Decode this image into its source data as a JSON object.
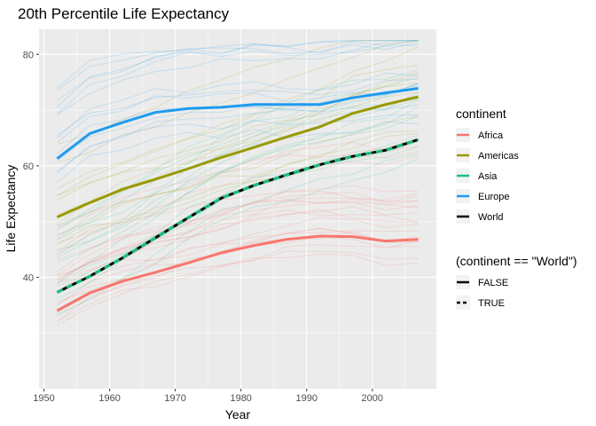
{
  "chart_data": {
    "type": "line",
    "title": "20th Percentile Life Expectancy",
    "xlabel": "Year",
    "ylabel": "Life Expectancy",
    "xlim": [
      1949.25,
      2009.75
    ],
    "ylim": [
      20.0,
      84.5
    ],
    "x_ticks": [
      1950,
      1960,
      1970,
      1980,
      1990,
      2000
    ],
    "y_ticks": [
      40,
      60,
      80
    ],
    "grid": true,
    "legend_position": "right",
    "x": [
      1952,
      1957,
      1962,
      1967,
      1972,
      1977,
      1982,
      1987,
      1992,
      1997,
      2002,
      2007
    ],
    "series": [
      {
        "name": "Africa",
        "color": "#F8766D",
        "values": [
          34.0,
          37.2,
          39.3,
          40.9,
          42.6,
          44.4,
          45.7,
          46.8,
          47.4,
          47.3,
          46.5,
          46.8
        ]
      },
      {
        "name": "Americas",
        "color": "#999900",
        "values": [
          50.8,
          53.4,
          55.8,
          57.6,
          59.5,
          61.5,
          63.3,
          65.2,
          67.0,
          69.4,
          71.0,
          72.4
        ]
      },
      {
        "name": "Europe",
        "color": "#1E9BF0",
        "values": [
          61.3,
          65.8,
          67.8,
          69.6,
          70.3,
          70.5,
          71.0,
          71.0,
          71.0,
          72.2,
          73.1,
          73.9
        ]
      },
      {
        "name": "World",
        "color": "#000000",
        "dashed_overlay": true,
        "values": [
          37.3,
          40.2,
          43.5,
          47.1,
          50.7,
          54.2,
          56.5,
          58.4,
          60.2,
          61.7,
          62.8,
          64.7
        ]
      }
    ],
    "background_lines": {
      "Africa": "#F8766D",
      "Americas": "#999900",
      "Asia": "#18C07F",
      "Europe": "#1E9BF0"
    },
    "legends": [
      {
        "title": "continent",
        "entries": [
          {
            "label": "Africa",
            "color": "#F8766D",
            "dash": "solid"
          },
          {
            "label": "Americas",
            "color": "#999900",
            "dash": "solid"
          },
          {
            "label": "Asia",
            "color": "#18C07F",
            "dash": "solid"
          },
          {
            "label": "Europe",
            "color": "#1E9BF0",
            "dash": "solid"
          },
          {
            "label": "World",
            "color": "#000000",
            "dash": "solid"
          }
        ]
      },
      {
        "title": "(continent == \"World\")",
        "entries": [
          {
            "label": "FALSE",
            "color": "#000000",
            "dash": "solid"
          },
          {
            "label": "TRUE",
            "color": "#000000",
            "dash": "dashed"
          }
        ]
      }
    ]
  }
}
